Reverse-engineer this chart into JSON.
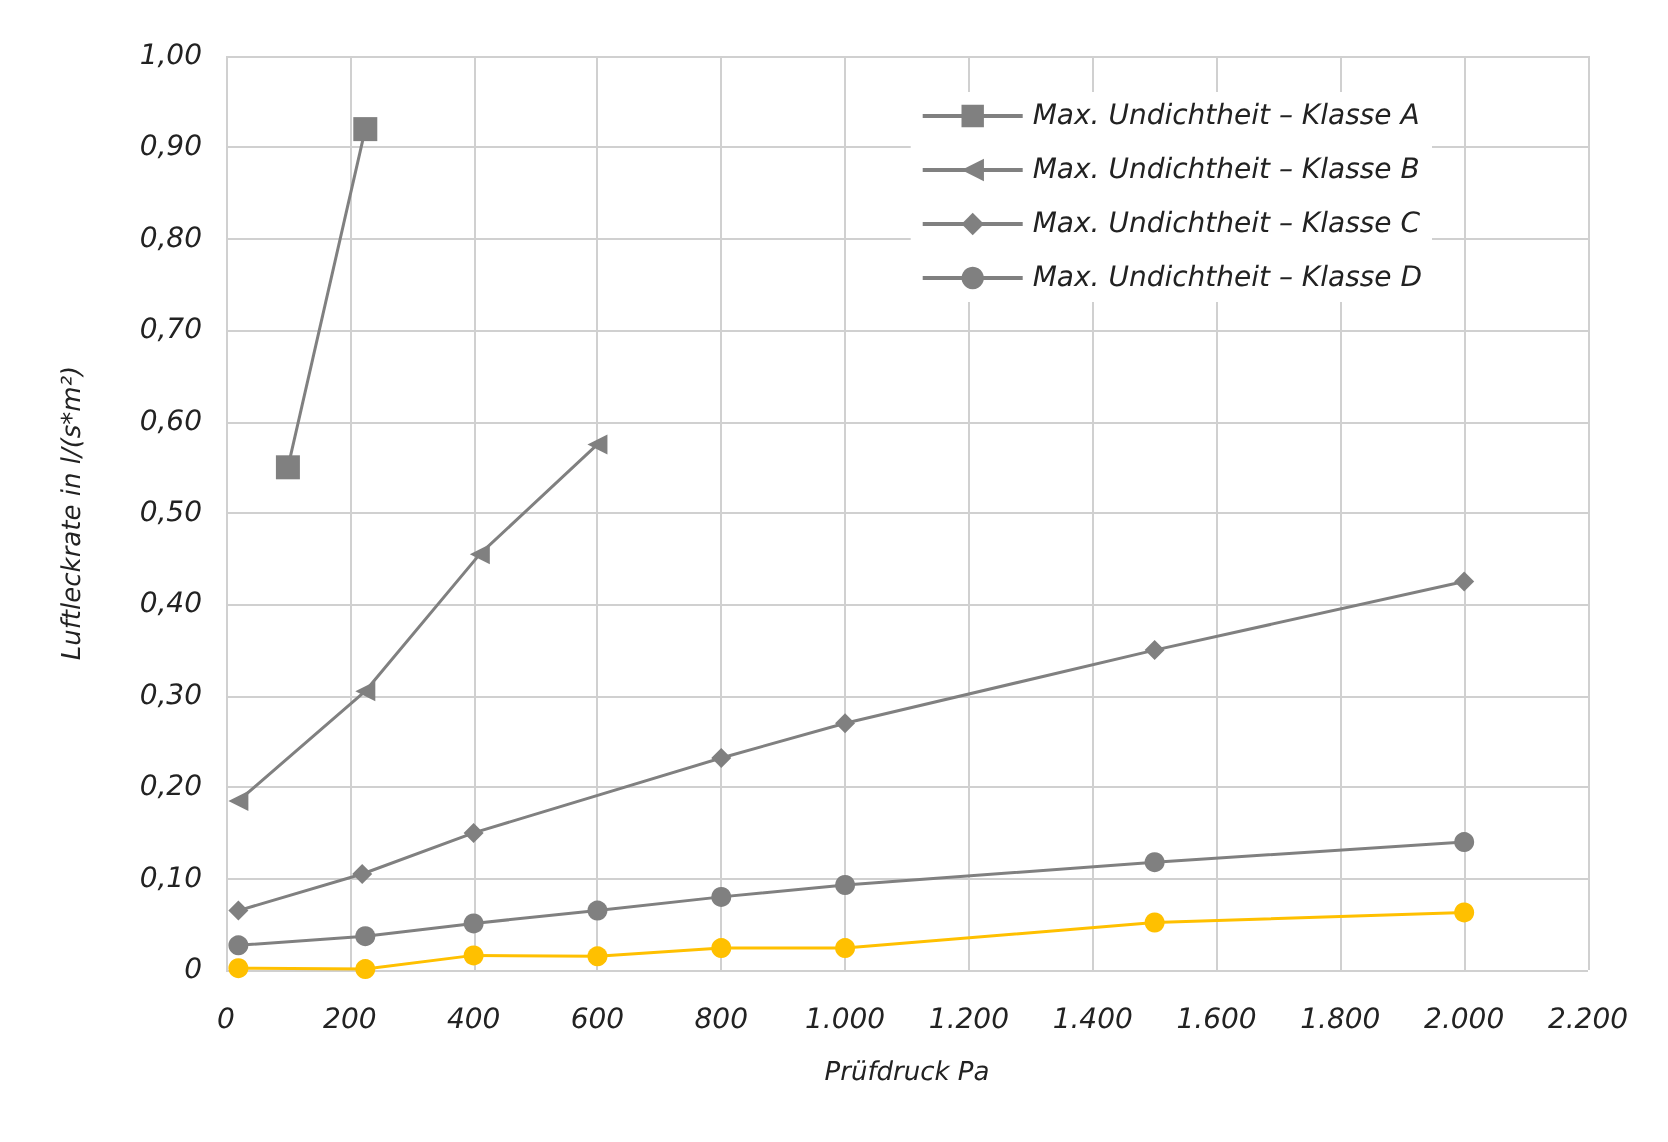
{
  "chart_data": {
    "type": "line",
    "xlabel": "Prüfdruck Pa",
    "ylabel": "Luftleckrate in l/(s*m²)",
    "xlim": [
      0,
      2200
    ],
    "xticks": [
      0,
      {
        "value": 200,
        "label": "200"
      },
      {
        "value": 400,
        "label": "400"
      },
      {
        "value": 600,
        "label": "600"
      },
      {
        "value": 800,
        "label": "800"
      },
      {
        "value": 1000,
        "label": "1.000"
      },
      {
        "value": 1200,
        "label": "1.200"
      },
      {
        "value": 1400,
        "label": "1.400"
      },
      {
        "value": 1600,
        "label": "1.600"
      },
      {
        "value": 1800,
        "label": "1.800"
      },
      {
        "value": 2000,
        "label": "2.000"
      },
      {
        "value": 2200,
        "label": "2.200"
      }
    ],
    "ylim": [
      0,
      1
    ],
    "yticks": [
      0,
      {
        "value": 0.1,
        "label": "0,10"
      },
      {
        "value": 0.2,
        "label": "0,20"
      },
      {
        "value": 0.3,
        "label": "0,30"
      },
      {
        "value": 0.4,
        "label": "0,40"
      },
      {
        "value": 0.5,
        "label": "0,50"
      },
      {
        "value": 0.6,
        "label": "0,60"
      },
      {
        "value": 0.7,
        "label": "0,70"
      },
      {
        "value": 0.8,
        "label": "0,80"
      },
      {
        "value": 0.9,
        "label": "0,90"
      },
      {
        "value": 1,
        "label": "1,00"
      }
    ],
    "grid": true,
    "legend": "top right",
    "line_style": "solid",
    "series": [
      {
        "name": "Max. Undichtheit – Klasse A",
        "color": "#808080",
        "marker": "square",
        "x": [
          100,
          225
        ],
        "values": [
          0.55,
          0.92
        ]
      },
      {
        "name": "Max. Undichtheit – Klasse B",
        "color": "#808080",
        "marker": "triangle",
        "x": [
          20,
          225,
          410,
          600
        ],
        "values": [
          0.185,
          0.305,
          0.455,
          0.575
        ]
      },
      {
        "name": "Max. Undichtheit – Klasse C",
        "color": "#808080",
        "marker": "diamond",
        "x": [
          20,
          220,
          400,
          800,
          1000,
          1500,
          2000
        ],
        "values": [
          0.065,
          0.105,
          0.15,
          0.232,
          0.27,
          0.35,
          0.425
        ]
      },
      {
        "name": "Max. Undichtheit – Klasse D",
        "color": "#808080",
        "marker": "circle",
        "x": [
          20,
          225,
          400,
          600,
          800,
          1000,
          1500,
          2000
        ],
        "values": [
          0.027,
          0.037,
          0.051,
          0.065,
          0.08,
          0.093,
          0.118,
          0.14
        ]
      },
      {
        "color": "#ffc000",
        "marker": "circle",
        "x": [
          20,
          225,
          400,
          600,
          800,
          1000,
          1500,
          2000
        ],
        "values": [
          0.002,
          0.001,
          0.016,
          0.015,
          0.024,
          0.024,
          0.052,
          0.063
        ]
      }
    ]
  }
}
